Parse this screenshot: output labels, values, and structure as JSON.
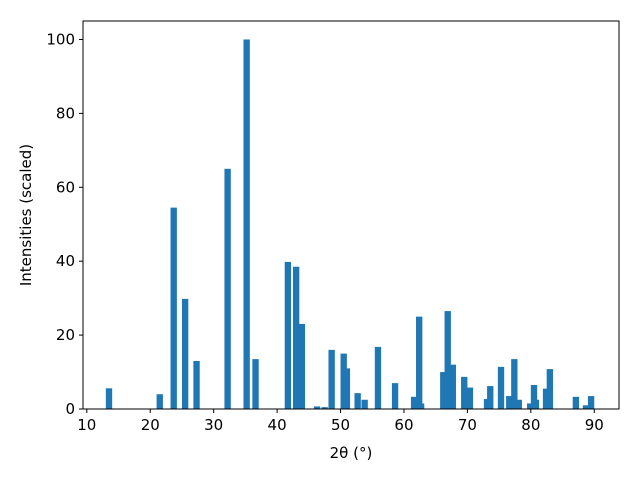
{
  "chart_data": {
    "type": "bar",
    "xlabel": "2θ (°)",
    "ylabel": "Intensities (scaled)",
    "color": "#1f77b4",
    "x": [
      13.5,
      21.5,
      23.7,
      25.5,
      27.3,
      32.2,
      35.2,
      36.6,
      41.7,
      43.0,
      43.9,
      46.3,
      47.5,
      48.6,
      50.5,
      51.0,
      52.7,
      53.8,
      55.9,
      58.6,
      61.6,
      62.4,
      62.7,
      66.2,
      66.9,
      67.7,
      69.5,
      69.9,
      70.4,
      73.1,
      73.6,
      75.3,
      76.6,
      77.4,
      78.1,
      79.9,
      80.5,
      80.8,
      82.4,
      83.0,
      87.1,
      88.7,
      89.5
    ],
    "values": [
      5.6,
      4,
      54.5,
      29.8,
      13,
      65,
      100,
      13.5,
      39.8,
      38.5,
      23,
      0.7,
      0.5,
      16,
      15,
      11,
      4.3,
      2.5,
      16.8,
      7,
      3.3,
      25,
      1.5,
      10,
      26.5,
      12,
      8.7,
      2,
      5.8,
      2.7,
      6.2,
      11.4,
      3.5,
      13.5,
      2.5,
      1.5,
      6.5,
      2.5,
      5.5,
      10.8,
      3.3,
      1,
      3.5
    ],
    "xlim": [
      9.4,
      93.9
    ],
    "xticks": [
      10,
      20,
      30,
      40,
      50,
      60,
      70,
      80,
      90
    ],
    "ylim": [
      0,
      105
    ],
    "yticks": [
      0,
      20,
      40,
      60,
      80,
      100
    ]
  }
}
